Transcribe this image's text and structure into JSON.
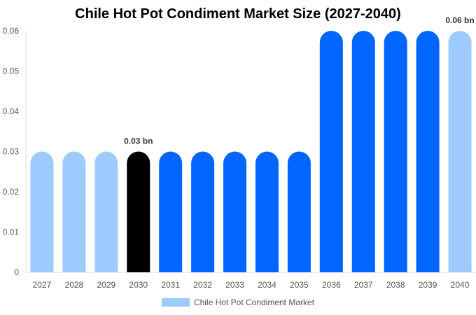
{
  "chart_data": {
    "type": "bar",
    "title": "Chile Hot Pot Condiment Market Size (2027-2040)",
    "categories": [
      "2027",
      "2028",
      "2029",
      "2030",
      "2031",
      "2032",
      "2033",
      "2034",
      "2035",
      "2036",
      "2037",
      "2038",
      "2039",
      "2040"
    ],
    "series": [
      {
        "name": "Chile Hot Pot Condiment Market",
        "values": [
          0.03,
          0.03,
          0.03,
          0.03,
          0.03,
          0.03,
          0.03,
          0.03,
          0.03,
          0.06,
          0.06,
          0.06,
          0.06,
          0.06
        ]
      }
    ],
    "bar_colors": [
      "#9ecbff",
      "#9ecbff",
      "#9ecbff",
      "#000000",
      "#0066ff",
      "#0066ff",
      "#0066ff",
      "#0066ff",
      "#0066ff",
      "#0066ff",
      "#0066ff",
      "#0066ff",
      "#0066ff",
      "#9ecbff"
    ],
    "y_ticks": [
      "0",
      "0.01",
      "0.02",
      "0.03",
      "0.04",
      "0.05",
      "0.06"
    ],
    "ylim": [
      0,
      0.06
    ],
    "data_labels": [
      {
        "index": 3,
        "text": "0.03 bn"
      },
      {
        "index": 13,
        "text": "0.06 bn"
      }
    ],
    "legend": {
      "label": "Chile Hot Pot Condiment Market",
      "color": "#9ecbff",
      "position": "bottom"
    },
    "grid": false
  }
}
